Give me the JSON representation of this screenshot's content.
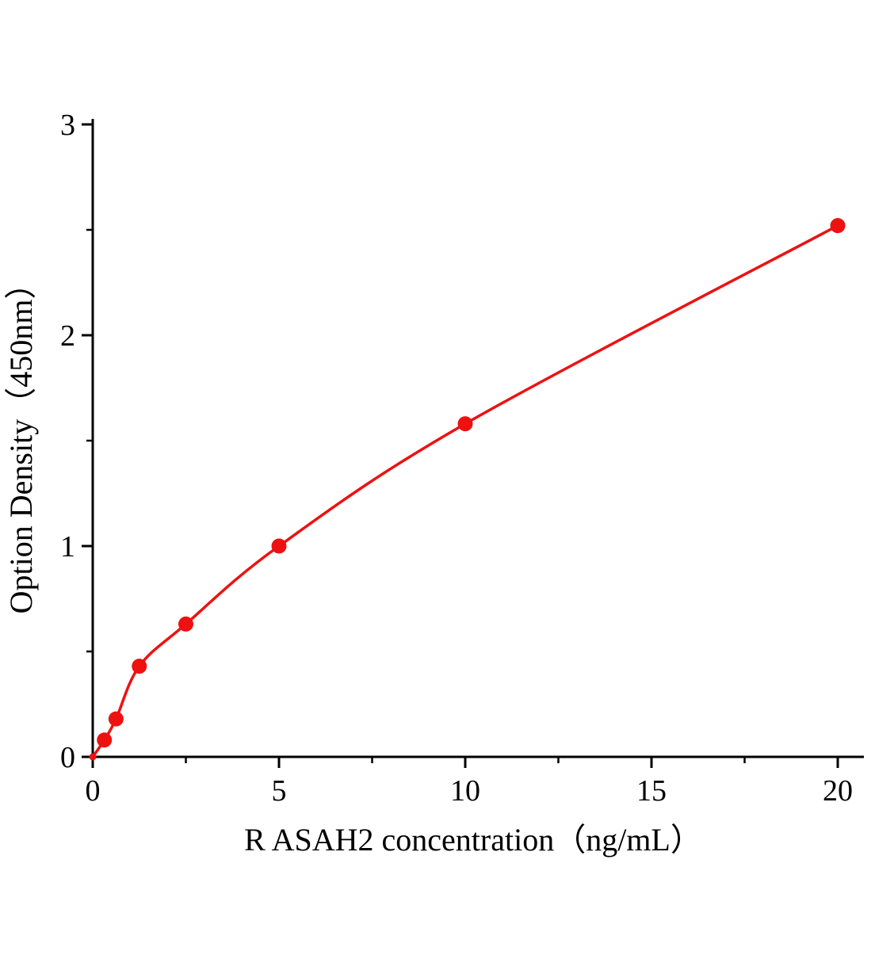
{
  "chart_data": {
    "type": "scatter",
    "title": "",
    "xlabel": "R ASAH2  concentration（ng/mL）",
    "ylabel": "Option Density（450nm）",
    "xlim": [
      0,
      20
    ],
    "ylim": [
      0,
      3
    ],
    "x_ticks": [
      0,
      5,
      10,
      15,
      20
    ],
    "y_ticks": [
      0,
      1,
      2,
      3
    ],
    "x_minor_ticks": [
      2.5,
      7.5,
      12.5,
      17.5
    ],
    "y_minor_ticks": [
      0.5,
      1.5,
      2.5
    ],
    "grid": "off",
    "legend": "none",
    "curve_color": "#ee1111",
    "axis_color": "#000000",
    "points": [
      [
        0,
        0
      ],
      [
        0.313,
        0.08
      ],
      [
        0.625,
        0.18
      ],
      [
        1.25,
        0.43
      ],
      [
        2.5,
        0.63
      ],
      [
        5,
        1.0
      ],
      [
        10,
        1.58
      ],
      [
        20,
        2.52
      ]
    ],
    "curve": "smooth fitted curve through all points"
  }
}
